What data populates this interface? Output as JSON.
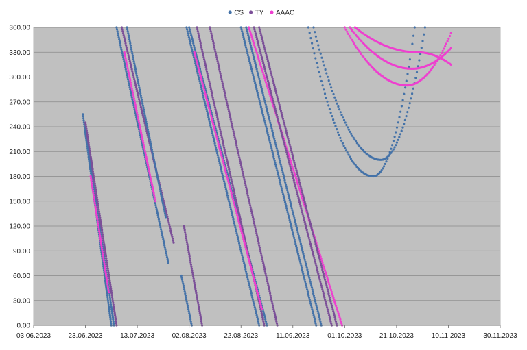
{
  "chart_data": {
    "type": "scatter",
    "title": "",
    "xlabel": "",
    "ylabel": "",
    "legend_position": "top",
    "plot_background": "#c0c0c0",
    "grid": true,
    "xlim": [
      "2023-06-03",
      "2023-11-30"
    ],
    "ylim": [
      0,
      360
    ],
    "x_ticks": [
      "03.06.2023",
      "23.06.2023",
      "13.07.2023",
      "02.08.2023",
      "22.08.2023",
      "11.09.2023",
      "01.10.2023",
      "21.10.2023",
      "10.11.2023",
      "30.11.2023"
    ],
    "y_ticks": [
      "0.00",
      "30.00",
      "60.00",
      "90.00",
      "120.00",
      "150.00",
      "180.00",
      "210.00",
      "240.00",
      "270.00",
      "300.00",
      "330.00",
      "360.00"
    ],
    "series": [
      {
        "name": "CS",
        "color": "#4472a8"
      },
      {
        "name": "TY",
        "color": "#7b4f98"
      },
      {
        "name": "AAAC",
        "color": "#ee3fcf"
      }
    ],
    "segments": [
      {
        "series": "CS",
        "start": [
          "2023-06-22",
          255
        ],
        "end": [
          "2023-07-03",
          0
        ]
      },
      {
        "series": "CS",
        "start": [
          "2023-06-23",
          240
        ],
        "end": [
          "2023-07-04",
          0
        ]
      },
      {
        "series": "TY",
        "start": [
          "2023-06-23",
          245
        ],
        "end": [
          "2023-07-05",
          0
        ]
      },
      {
        "series": "AAAC",
        "start": [
          "2023-06-25",
          180
        ],
        "end": [
          "2023-07-02",
          40
        ]
      },
      {
        "series": "CS",
        "start": [
          "2023-07-05",
          360
        ],
        "end": [
          "2023-07-25",
          75
        ]
      },
      {
        "series": "TY",
        "start": [
          "2023-07-07",
          360
        ],
        "end": [
          "2023-07-27",
          100
        ]
      },
      {
        "series": "CS",
        "start": [
          "2023-07-09",
          360
        ],
        "end": [
          "2023-07-24",
          130
        ]
      },
      {
        "series": "AAAC",
        "start": [
          "2023-07-08",
          330
        ],
        "end": [
          "2023-07-20",
          150
        ]
      },
      {
        "series": "CS",
        "start": [
          "2023-07-30",
          60
        ],
        "end": [
          "2023-08-03",
          0
        ]
      },
      {
        "series": "TY",
        "start": [
          "2023-07-31",
          120
        ],
        "end": [
          "2023-08-07",
          0
        ]
      },
      {
        "series": "CS",
        "start": [
          "2023-08-01",
          360
        ],
        "end": [
          "2023-08-29",
          0
        ]
      },
      {
        "series": "CS",
        "start": [
          "2023-08-02",
          360
        ],
        "end": [
          "2023-09-01",
          0
        ]
      },
      {
        "series": "TY",
        "start": [
          "2023-08-05",
          360
        ],
        "end": [
          "2023-08-31",
          0
        ]
      },
      {
        "series": "TY",
        "start": [
          "2023-08-10",
          360
        ],
        "end": [
          "2023-09-05",
          0
        ]
      },
      {
        "series": "AAAC",
        "start": [
          "2023-08-04",
          330
        ],
        "end": [
          "2023-08-30",
          20
        ]
      },
      {
        "series": "CS",
        "start": [
          "2023-08-22",
          360
        ],
        "end": [
          "2023-09-20",
          0
        ]
      },
      {
        "series": "CS",
        "start": [
          "2023-08-24",
          360
        ],
        "end": [
          "2023-09-22",
          0
        ]
      },
      {
        "series": "AAAC",
        "start": [
          "2023-08-25",
          360
        ],
        "end": [
          "2023-09-30",
          0
        ]
      },
      {
        "series": "TY",
        "start": [
          "2023-08-27",
          360
        ],
        "end": [
          "2023-09-26",
          0
        ]
      },
      {
        "series": "TY",
        "start": [
          "2023-08-29",
          360
        ],
        "end": [
          "2023-09-28",
          0
        ]
      }
    ],
    "curves": [
      {
        "series": "CS",
        "start": [
          "2023-09-17",
          360
        ],
        "min": [
          "2023-10-12",
          180
        ],
        "end": [
          "2023-10-28",
          360
        ]
      },
      {
        "series": "CS",
        "start": [
          "2023-09-19",
          360
        ],
        "min": [
          "2023-10-15",
          200
        ],
        "end": [
          "2023-11-01",
          360
        ]
      },
      {
        "series": "AAAC",
        "start": [
          "2023-10-01",
          360
        ],
        "min": [
          "2023-10-25",
          290
        ],
        "end": [
          "2023-11-11",
          353
        ]
      },
      {
        "series": "AAAC",
        "start": [
          "2023-10-03",
          360
        ],
        "min": [
          "2023-10-27",
          310
        ],
        "end": [
          "2023-11-11",
          335
        ]
      },
      {
        "series": "AAAC",
        "start": [
          "2023-10-05",
          360
        ],
        "min": [
          "2023-10-29",
          330
        ],
        "end": [
          "2023-11-11",
          315
        ]
      }
    ]
  }
}
